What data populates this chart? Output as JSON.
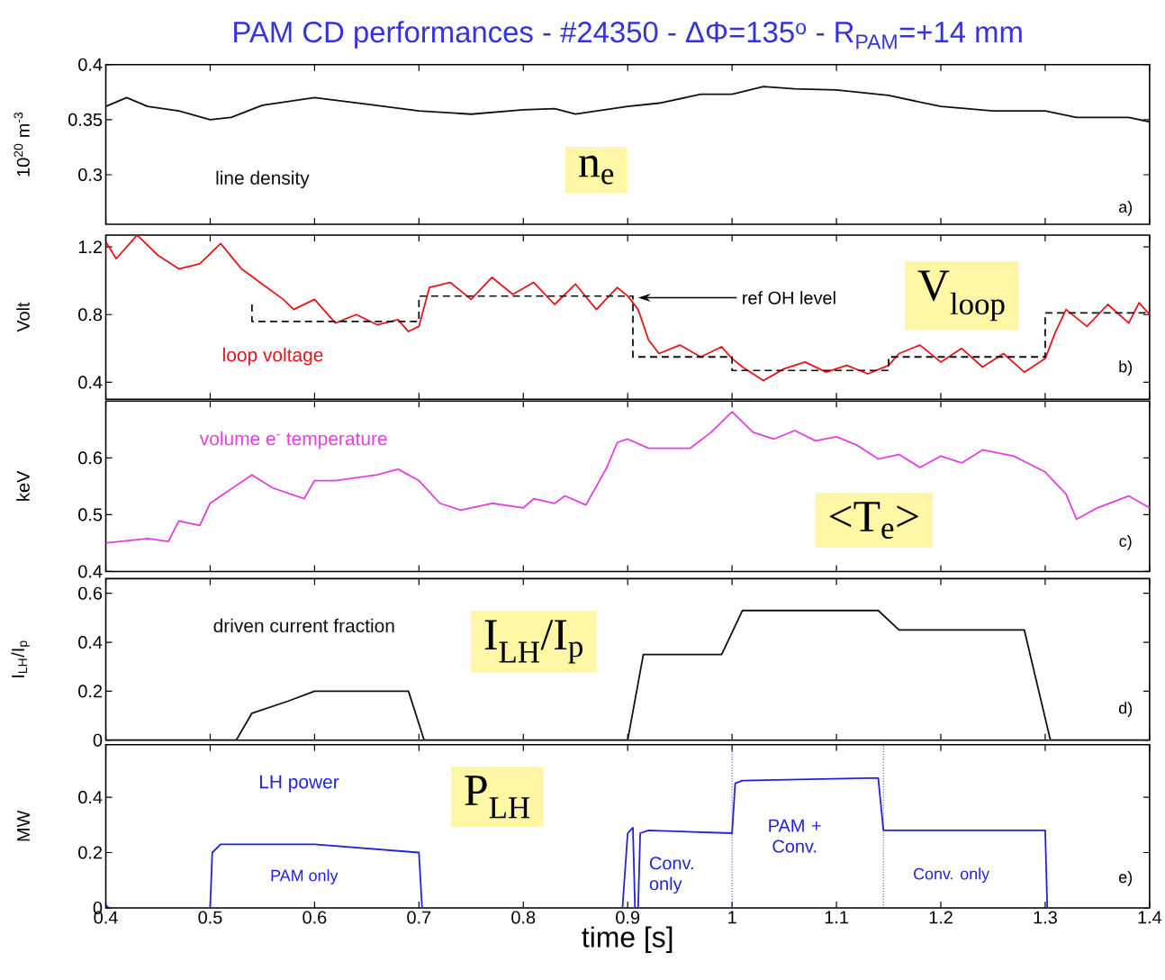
{
  "chart_data": [
    {
      "type": "line",
      "title": "PAM CD performances - #24350 - ΔΦ=135$^{o}$ - R$_{PAM}$=+14 mm",
      "ylabel": "10$^{20}$ m$^{-3}$",
      "xlim": [
        0.4,
        1.4
      ],
      "xticks": [
        0.4,
        0.5,
        0.6,
        0.7,
        0.8,
        0.9,
        1,
        1.1,
        1.2,
        1.3,
        1.4
      ],
      "ylim": [
        0.255,
        0.4
      ],
      "yticks": [
        0.3,
        0.35,
        0.4
      ],
      "tick_labels": "y",
      "series": [
        {
          "name": "line density",
          "color": "#111111",
          "x": [
            0.4,
            0.42,
            0.44,
            0.47,
            0.5,
            0.52,
            0.55,
            0.6,
            0.65,
            0.7,
            0.75,
            0.8,
            0.83,
            0.85,
            0.9,
            0.93,
            0.97,
            1.0,
            1.03,
            1.06,
            1.1,
            1.15,
            1.2,
            1.25,
            1.3,
            1.33,
            1.38,
            1.4
          ],
          "values": [
            0.362,
            0.37,
            0.362,
            0.358,
            0.35,
            0.352,
            0.363,
            0.37,
            0.364,
            0.358,
            0.355,
            0.359,
            0.36,
            0.355,
            0.362,
            0.365,
            0.373,
            0.373,
            0.38,
            0.378,
            0.377,
            0.372,
            0.362,
            0.358,
            0.358,
            0.352,
            0.352,
            0.348
          ]
        }
      ],
      "annotations": [
        "n$_{e}$",
        "a)"
      ]
    },
    {
      "type": "line",
      "ylabel": "Volt",
      "xlim": [
        0.4,
        1.4
      ],
      "xticks": [
        0.4,
        0.5,
        0.6,
        0.7,
        0.8,
        0.9,
        1,
        1.1,
        1.2,
        1.3,
        1.4
      ],
      "ylim": [
        0.3,
        1.27
      ],
      "yticks": [
        0.4,
        0.8,
        1.2
      ],
      "tick_labels": "y",
      "series": [
        {
          "name": "loop voltage",
          "color": "#e8141b",
          "x": [
            0.4,
            0.41,
            0.43,
            0.45,
            0.47,
            0.49,
            0.51,
            0.53,
            0.55,
            0.57,
            0.58,
            0.6,
            0.62,
            0.64,
            0.66,
            0.68,
            0.69,
            0.7,
            0.71,
            0.73,
            0.75,
            0.77,
            0.79,
            0.81,
            0.83,
            0.85,
            0.87,
            0.89,
            0.9,
            0.91,
            0.92,
            0.93,
            0.95,
            0.97,
            0.99,
            1.0,
            1.01,
            1.03,
            1.05,
            1.07,
            1.09,
            1.11,
            1.13,
            1.15,
            1.16,
            1.18,
            1.2,
            1.22,
            1.24,
            1.26,
            1.28,
            1.3,
            1.31,
            1.32,
            1.34,
            1.36,
            1.38,
            1.39,
            1.4
          ],
          "values": [
            1.23,
            1.13,
            1.27,
            1.15,
            1.07,
            1.1,
            1.22,
            1.07,
            0.98,
            0.89,
            0.83,
            0.89,
            0.75,
            0.8,
            0.74,
            0.77,
            0.7,
            0.73,
            0.96,
            0.99,
            0.89,
            1.02,
            0.92,
            0.99,
            0.86,
            0.98,
            0.83,
            0.96,
            0.91,
            0.83,
            0.65,
            0.57,
            0.62,
            0.55,
            0.61,
            0.54,
            0.49,
            0.41,
            0.48,
            0.52,
            0.46,
            0.5,
            0.45,
            0.5,
            0.57,
            0.62,
            0.52,
            0.6,
            0.49,
            0.57,
            0.46,
            0.54,
            0.7,
            0.83,
            0.73,
            0.86,
            0.75,
            0.87,
            0.8
          ]
        },
        {
          "color": "#111111",
          "line_style": "dashed",
          "x": [
            0.54,
            0.54,
            0.7,
            0.7,
            0.905,
            0.905,
            1.0,
            1.0,
            1.15,
            1.15,
            1.3,
            1.3,
            1.4
          ],
          "values": [
            0.86,
            0.76,
            0.76,
            0.91,
            0.91,
            0.55,
            0.55,
            0.47,
            0.47,
            0.55,
            0.55,
            0.81,
            0.81
          ]
        }
      ],
      "annotations": [
        {
          "text": "ref OH level",
          "x": 0.91,
          "y": 0.9
        },
        "V$_{loop}$",
        "b)"
      ]
    },
    {
      "type": "line",
      "ylabel": "keV",
      "xlim": [
        0.4,
        1.4
      ],
      "xticks": [
        0.4,
        0.5,
        0.6,
        0.7,
        0.8,
        0.9,
        1,
        1.1,
        1.2,
        1.3,
        1.4
      ],
      "ylim": [
        0.4,
        0.7
      ],
      "yticks": [
        0.4,
        0.5,
        0.6
      ],
      "tick_labels": "y",
      "series": [
        {
          "name": "volume e$^{-}$ temperature",
          "color": "#e040e0",
          "x": [
            0.4,
            0.44,
            0.46,
            0.47,
            0.49,
            0.5,
            0.54,
            0.56,
            0.59,
            0.6,
            0.62,
            0.66,
            0.68,
            0.7,
            0.72,
            0.74,
            0.77,
            0.8,
            0.81,
            0.83,
            0.84,
            0.86,
            0.88,
            0.89,
            0.9,
            0.92,
            0.96,
            0.98,
            1.0,
            1.02,
            1.04,
            1.06,
            1.08,
            1.1,
            1.12,
            1.14,
            1.16,
            1.18,
            1.2,
            1.22,
            1.24,
            1.27,
            1.3,
            1.32,
            1.33,
            1.35,
            1.38,
            1.4
          ],
          "values": [
            0.45,
            0.458,
            0.453,
            0.489,
            0.481,
            0.52,
            0.57,
            0.547,
            0.528,
            0.56,
            0.56,
            0.57,
            0.58,
            0.56,
            0.52,
            0.508,
            0.52,
            0.512,
            0.528,
            0.52,
            0.533,
            0.517,
            0.583,
            0.627,
            0.633,
            0.617,
            0.617,
            0.645,
            0.681,
            0.645,
            0.633,
            0.648,
            0.63,
            0.637,
            0.622,
            0.598,
            0.606,
            0.583,
            0.603,
            0.591,
            0.614,
            0.603,
            0.575,
            0.536,
            0.492,
            0.512,
            0.533,
            0.512
          ]
        }
      ],
      "annotations": [
        "<T$_{e}$>",
        "c)"
      ]
    },
    {
      "type": "line",
      "ylabel": "I$_{LH}$/I$_{p}$",
      "xlim": [
        0.4,
        1.4
      ],
      "xticks": [
        0.4,
        0.5,
        0.6,
        0.7,
        0.8,
        0.9,
        1,
        1.1,
        1.2,
        1.3,
        1.4
      ],
      "ylim": [
        0,
        0.66
      ],
      "yticks": [
        0,
        0.2,
        0.4,
        0.6
      ],
      "tick_labels": "y",
      "series": [
        {
          "name": "driven current fraction",
          "color": "#111111",
          "x": [
            0.4,
            0.525,
            0.54,
            0.575,
            0.6,
            0.69,
            0.705,
            0.9,
            0.915,
            0.99,
            1.01,
            1.14,
            1.16,
            1.28,
            1.305,
            1.4
          ],
          "values": [
            0,
            0,
            0.11,
            0.16,
            0.2,
            0.2,
            0,
            0,
            0.35,
            0.35,
            0.53,
            0.53,
            0.45,
            0.45,
            0,
            0
          ]
        }
      ],
      "annotations": [
        "I$_{LH}$/I$_{p}$",
        "d)"
      ]
    },
    {
      "type": "line",
      "xlabel": "time [s]",
      "ylabel": "MW",
      "xlim": [
        0.4,
        1.4
      ],
      "xticks": [
        0.4,
        0.5,
        0.6,
        0.7,
        0.8,
        0.9,
        1,
        1.1,
        1.2,
        1.3,
        1.4
      ],
      "ylim": [
        0,
        0.59
      ],
      "yticks": [
        0,
        0.2,
        0.4
      ],
      "series": [
        {
          "name": "LH power",
          "color": "#2222dd",
          "x": [
            0.4,
            0.403,
            0.5,
            0.502,
            0.51,
            0.6,
            0.7,
            0.703,
            0.895,
            0.9,
            0.905,
            0.907,
            0.91,
            0.912,
            0.92,
            1.0,
            1.003,
            1.01,
            1.14,
            1.145,
            1.3,
            1.302,
            1.4
          ],
          "values": [
            0.01,
            0,
            0,
            0.2,
            0.23,
            0.23,
            0.2,
            0,
            0,
            0.27,
            0.29,
            0,
            0,
            0.27,
            0.28,
            0.27,
            0.45,
            0.46,
            0.47,
            0.28,
            0.28,
            0,
            0
          ]
        }
      ],
      "ref_lines": [
        {
          "axis": "x",
          "value": 1.0,
          "color": "#2222dd",
          "line_style": "dotted"
        },
        {
          "axis": "x",
          "value": 1.145,
          "color": "#2222dd",
          "line_style": "dotted"
        }
      ],
      "annotations": [
        "P$_{LH}$",
        "PAM only",
        "Conv. only",
        "PAM + Conv.",
        "Conv. only",
        "e)"
      ]
    }
  ]
}
